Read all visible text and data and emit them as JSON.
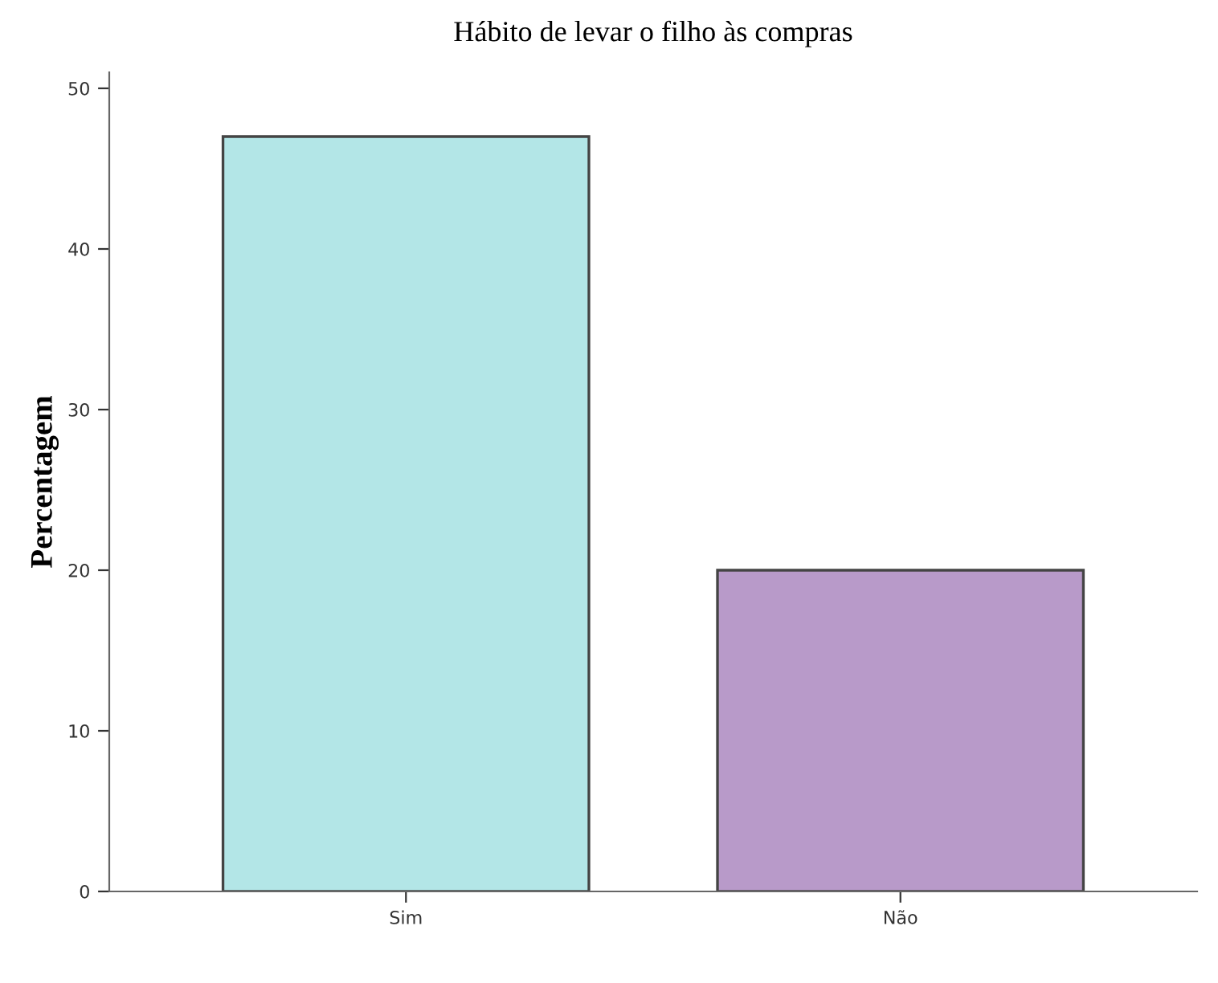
{
  "chart_data": {
    "type": "bar",
    "title": "Hábito de levar o filho às compras",
    "ylabel": "Percentagem",
    "categories": [
      "Sim",
      "Não"
    ],
    "values": [
      47,
      20
    ],
    "colors": [
      "#b3e6e7",
      "#b89ac9"
    ],
    "ylim": [
      0,
      51
    ],
    "yticks": [
      0,
      10,
      20,
      30,
      40,
      50
    ],
    "grid": false,
    "legend": false
  }
}
